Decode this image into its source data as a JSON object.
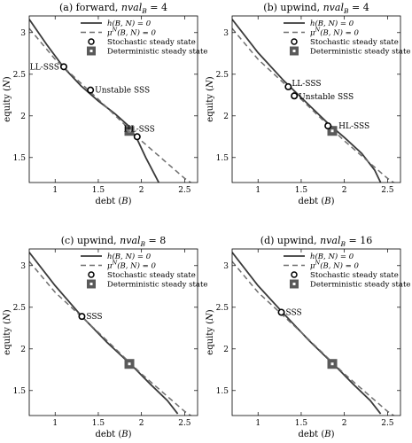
{
  "chart_data": [
    {
      "type": "line",
      "title_prefix": "(a) forward,",
      "title_var": "nval",
      "title_sub": "B",
      "title_suffix": " = 4",
      "xlabel": "debt (B)",
      "ylabel": "equity (N)",
      "xlim": [
        0.7,
        2.65
      ],
      "ylim": [
        1.2,
        3.2
      ],
      "xticks": [
        "1",
        "1.5",
        "2",
        "2.5"
      ],
      "yticks": [
        "1.5",
        "2",
        "2.5",
        "3"
      ],
      "grid": false,
      "legend": {
        "placement": "top-right",
        "entries": [
          "h(B, N) = 0",
          "μ^N(B, N) = 0",
          "Stochastic steady state",
          "Deterministic steady state"
        ]
      },
      "series": [
        {
          "name": "h(B, N) = 0",
          "style": "solid",
          "x": [
            0.7,
            0.9,
            1.1,
            1.3,
            1.5,
            1.7,
            1.85,
            1.95,
            2.05,
            2.15,
            2.2
          ],
          "y": [
            3.16,
            2.86,
            2.58,
            2.36,
            2.18,
            2.02,
            1.88,
            1.72,
            1.5,
            1.3,
            1.2
          ]
        },
        {
          "name": "μ^N(B, N) = 0",
          "style": "dashed",
          "x": [
            0.7,
            1.0,
            1.5,
            2.0,
            2.5,
            2.6
          ],
          "y": [
            3.05,
            2.68,
            2.2,
            1.7,
            1.25,
            1.18
          ]
        }
      ],
      "stochastic_points": [
        {
          "x": 1.1,
          "y": 2.59,
          "label": "LL-SSS"
        },
        {
          "x": 1.41,
          "y": 2.31,
          "label": "Unstable SSS"
        },
        {
          "x": 1.95,
          "y": 1.75,
          "label": "HL-SSS"
        }
      ],
      "deterministic_point": {
        "x": 1.86,
        "y": 1.82
      }
    },
    {
      "type": "line",
      "title_prefix": "(b) upwind,",
      "title_var": "nval",
      "title_sub": "B",
      "title_suffix": " = 4",
      "xlabel": "debt (B)",
      "ylabel": "equity (N)",
      "xlim": [
        0.7,
        2.65
      ],
      "ylim": [
        1.2,
        3.2
      ],
      "xticks": [
        "1",
        "1.5",
        "2",
        "2.5"
      ],
      "yticks": [
        "1.5",
        "2",
        "2.5",
        "3"
      ],
      "grid": false,
      "legend": {
        "placement": "top-right",
        "entries": [
          "h(B, N) = 0",
          "μ^N(B, N) = 0",
          "Stochastic steady state",
          "Deterministic steady state"
        ]
      },
      "series": [
        {
          "name": "h(B, N) = 0",
          "style": "solid",
          "x": [
            0.7,
            1.0,
            1.3,
            1.6,
            1.8,
            2.0,
            2.2,
            2.35,
            2.42
          ],
          "y": [
            3.16,
            2.76,
            2.42,
            2.12,
            1.92,
            1.74,
            1.55,
            1.35,
            1.2
          ]
        },
        {
          "name": "μ^N(B, N) = 0",
          "style": "dashed",
          "x": [
            0.7,
            1.0,
            1.5,
            2.0,
            2.5,
            2.6
          ],
          "y": [
            3.05,
            2.68,
            2.2,
            1.7,
            1.25,
            1.18
          ]
        }
      ],
      "stochastic_points": [
        {
          "x": 1.35,
          "y": 2.35,
          "label": "LL-SSS"
        },
        {
          "x": 1.42,
          "y": 2.24,
          "label": "Unstable SSS"
        },
        {
          "x": 1.81,
          "y": 1.88,
          "label": "HL-SSS"
        }
      ],
      "deterministic_point": {
        "x": 1.86,
        "y": 1.82
      }
    },
    {
      "type": "line",
      "title_prefix": "(c) upwind,",
      "title_var": "nval",
      "title_sub": "B",
      "title_suffix": " = 8",
      "xlabel": "debt (B)",
      "ylabel": "equity (N)",
      "xlim": [
        0.7,
        2.65
      ],
      "ylim": [
        1.2,
        3.2
      ],
      "xticks": [
        "1",
        "1.5",
        "2",
        "2.5"
      ],
      "yticks": [
        "1.5",
        "2",
        "2.5",
        "3"
      ],
      "grid": false,
      "legend": {
        "placement": "top-right",
        "entries": [
          "h(B, N) = 0",
          "μ^N(B, N) = 0",
          "Stochastic steady state",
          "Deterministic steady state"
        ]
      },
      "series": [
        {
          "name": "h(B, N) = 0",
          "style": "solid",
          "x": [
            0.7,
            1.0,
            1.3,
            1.6,
            1.9,
            2.1,
            2.3,
            2.42
          ],
          "y": [
            3.16,
            2.76,
            2.4,
            2.08,
            1.79,
            1.58,
            1.38,
            1.22
          ]
        },
        {
          "name": "μ^N(B, N) = 0",
          "style": "dashed",
          "x": [
            0.7,
            1.0,
            1.5,
            2.0,
            2.5,
            2.6
          ],
          "y": [
            3.05,
            2.68,
            2.2,
            1.7,
            1.25,
            1.18
          ]
        }
      ],
      "stochastic_points": [
        {
          "x": 1.31,
          "y": 2.39,
          "label": "SSS"
        }
      ],
      "deterministic_point": {
        "x": 1.86,
        "y": 1.82
      }
    },
    {
      "type": "line",
      "title_prefix": "(d) upwind,",
      "title_var": "nval",
      "title_sub": "B",
      "title_suffix": " = 16",
      "xlabel": "debt (B)",
      "ylabel": "equity (N)",
      "xlim": [
        0.7,
        2.65
      ],
      "ylim": [
        1.2,
        3.2
      ],
      "xticks": [
        "1",
        "1.5",
        "2",
        "2.5"
      ],
      "yticks": [
        "1.5",
        "2",
        "2.5",
        "3"
      ],
      "grid": false,
      "legend": {
        "placement": "top-right",
        "entries": [
          "h(B, N) = 0",
          "μ^N(B, N) = 0",
          "Stochastic steady state",
          "Deterministic steady state"
        ]
      },
      "series": [
        {
          "name": "h(B, N) = 0",
          "style": "solid",
          "x": [
            0.7,
            1.0,
            1.3,
            1.6,
            1.9,
            2.1,
            2.3,
            2.42
          ],
          "y": [
            3.16,
            2.76,
            2.42,
            2.09,
            1.79,
            1.58,
            1.38,
            1.22
          ]
        },
        {
          "name": "μ^N(B, N) = 0",
          "style": "dashed",
          "x": [
            0.7,
            1.0,
            1.5,
            2.0,
            2.5,
            2.6
          ],
          "y": [
            3.05,
            2.68,
            2.2,
            1.7,
            1.25,
            1.18
          ]
        }
      ],
      "stochastic_points": [
        {
          "x": 1.27,
          "y": 2.44,
          "label": "SSS"
        }
      ],
      "deterministic_point": {
        "x": 1.86,
        "y": 1.82
      }
    }
  ],
  "colors": {
    "solid_line": "#3a3a3a",
    "dashed_line": "#6e6e6e",
    "deterministic_marker": "#5a5a5a",
    "axis": "#000000"
  }
}
